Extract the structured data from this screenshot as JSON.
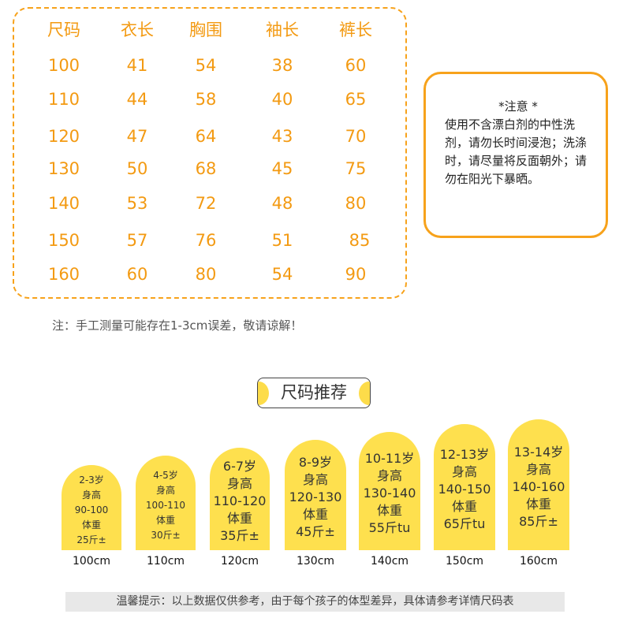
{
  "table": {
    "headers": [
      "尺码",
      "衣长",
      "胸围",
      "袖长",
      "裤长"
    ],
    "rows": [
      [
        "100",
        "41",
        "54",
        "38",
        "60"
      ],
      [
        "110",
        "44",
        "58",
        "40",
        "65"
      ],
      [
        "120",
        "47",
        "64",
        "43",
        "70"
      ],
      [
        "130",
        "50",
        "68",
        "45",
        "75"
      ],
      [
        "140",
        "53",
        "72",
        "48",
        "80"
      ],
      [
        "150",
        "57",
        "76",
        "51",
        "85"
      ],
      [
        "160",
        "60",
        "80",
        "54",
        "90"
      ]
    ]
  },
  "note": {
    "title": "*注意 *",
    "body": "使用不含漂白剂的中性洗剂，请勿长时间浸泡；洗涤时，请尽量将反面朝外；请勿在阳光下暴晒。"
  },
  "disclaimer": "注：手工测量可能存在1-3cm误差，敬请谅解！",
  "recommend_title": "尺码推荐",
  "sizes": [
    {
      "age": "2-3岁",
      "h_label": "身高",
      "height": "90-100",
      "w_label": "体重",
      "weight": "25斤±",
      "size": "100cm"
    },
    {
      "age": "4-5岁",
      "h_label": "身高",
      "height": "100-110",
      "w_label": "体重",
      "weight": "30斤±",
      "size": "110cm"
    },
    {
      "age": "6-7岁",
      "h_label": "身高",
      "height": "110-120",
      "w_label": "体重",
      "weight": "35斤±",
      "size": "120cm"
    },
    {
      "age": "8-9岁",
      "h_label": "身高",
      "height": "120-130",
      "w_label": "体重",
      "weight": "45斤±",
      "size": "130cm"
    },
    {
      "age": "10-11岁",
      "h_label": "身高",
      "height": "130-140",
      "w_label": "体重",
      "weight": "55斤tu",
      "size": "140cm"
    },
    {
      "age": "12-13岁",
      "h_label": "身高",
      "height": "140-150",
      "w_label": "体重",
      "weight": "65斤tu",
      "size": "150cm"
    },
    {
      "age": "13-14岁",
      "h_label": "身高",
      "height": "140-160",
      "w_label": "体重",
      "weight": "85斤±",
      "size": "160cm"
    }
  ],
  "tip": "温馨提示：以上数据仅供参考，由于每个孩子的体型差异，具体请参考详情尺码表",
  "colors": {
    "orange": "#f39a12",
    "yellow": "#fee04e"
  }
}
